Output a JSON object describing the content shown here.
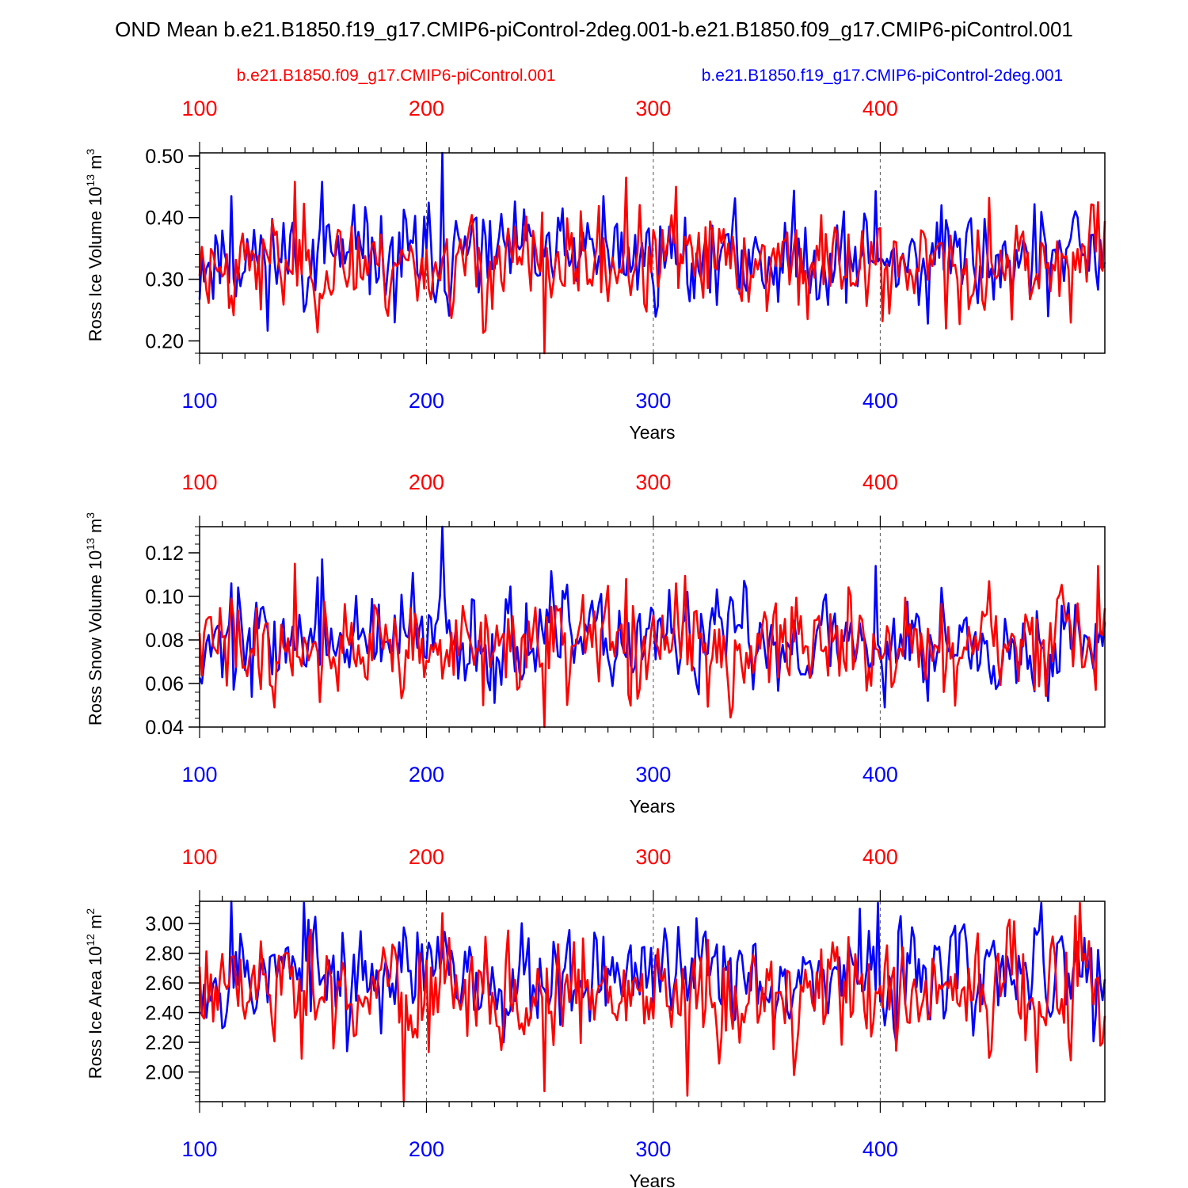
{
  "title": "OND Mean b.e21.B1850.f19_g17.CMIP6-piControl-2deg.001-b.e21.B1850.f09_g17.CMIP6-piControl.001",
  "colors": {
    "red": "#ff0000",
    "blue": "#0000ff",
    "text": "#000000",
    "grid": "#555555"
  },
  "legend": {
    "red_label": "b.e21.B1850.f09_g17.CMIP6-piControl.001",
    "blue_label": "b.e21.B1850.f19_g17.CMIP6-piControl-2deg.001"
  },
  "chart_data": [
    {
      "type": "line",
      "title": "",
      "ylabel_main": "Ross Ice Volume 10",
      "ylabel_exp1": "13",
      "ylabel_unit": " m",
      "ylabel_exp2": "3",
      "xlabel": "Years",
      "xlim": [
        100,
        499
      ],
      "ylim": [
        0.18,
        0.505
      ],
      "yticks": [
        0.2,
        0.3,
        0.4,
        0.5
      ],
      "yticklabels": [
        "0.20",
        "0.30",
        "0.40",
        "0.50"
      ],
      "xticks": [
        100,
        200,
        300,
        400
      ],
      "xticklabels": [
        "100",
        "200",
        "300",
        "400"
      ],
      "grid_x": [
        200,
        300,
        400
      ],
      "series": [
        {
          "name": "b.e21.B1850.f19_g17.CMIP6-piControl-2deg.001",
          "color": "blue",
          "mean": 0.335,
          "sd": 0.038,
          "seed": 11,
          "peaks": [
            [
              114,
              0.435
            ],
            [
              154,
              0.458
            ],
            [
              207,
              0.505
            ],
            [
              222,
              0.4
            ],
            [
              278,
              0.435
            ],
            [
              398,
              0.443
            ],
            [
              427,
              0.42
            ],
            [
              421,
              0.228
            ],
            [
              474,
              0.24
            ],
            [
              186,
              0.23
            ]
          ]
        },
        {
          "name": "b.e21.B1850.f09_g17.CMIP6-piControl.001",
          "color": "red",
          "mean": 0.325,
          "sd": 0.038,
          "seed": 23,
          "peaks": [
            [
              142,
              0.458
            ],
            [
              252,
              0.18
            ],
            [
              288,
              0.465
            ],
            [
              310,
              0.45
            ],
            [
              429,
              0.22
            ],
            [
              401,
              0.232
            ],
            [
              448,
              0.432
            ],
            [
              496,
              0.425
            ],
            [
              225,
              0.213
            ]
          ]
        }
      ]
    },
    {
      "type": "line",
      "title": "",
      "ylabel_main": "Ross Snow Volume 10",
      "ylabel_exp1": "13",
      "ylabel_unit": " m",
      "ylabel_exp2": "3",
      "xlabel": "Years",
      "xlim": [
        100,
        499
      ],
      "ylim": [
        0.04,
        0.132
      ],
      "yticks": [
        0.04,
        0.06,
        0.08,
        0.1,
        0.12
      ],
      "yticklabels": [
        "0.04",
        "0.06",
        "0.08",
        "0.10",
        "0.12"
      ],
      "xticks": [
        100,
        200,
        300,
        400
      ],
      "xticklabels": [
        "100",
        "200",
        "300",
        "400"
      ],
      "grid_x": [
        200,
        300,
        400
      ],
      "series": [
        {
          "name": "b.e21.B1850.f19_g17.CMIP6-piControl-2deg.001",
          "color": "blue",
          "mean": 0.08,
          "sd": 0.011,
          "seed": 37,
          "peaks": [
            [
              114,
              0.106
            ],
            [
              154,
              0.117
            ],
            [
              207,
              0.132
            ],
            [
              398,
              0.114
            ],
            [
              427,
              0.104
            ],
            [
              421,
              0.052
            ],
            [
              474,
              0.052
            ],
            [
              402,
              0.049
            ]
          ]
        },
        {
          "name": "b.e21.B1850.f09_g17.CMIP6-piControl.001",
          "color": "red",
          "mean": 0.077,
          "sd": 0.011,
          "seed": 41,
          "peaks": [
            [
              142,
              0.115
            ],
            [
              252,
              0.04
            ],
            [
              288,
              0.108
            ],
            [
              310,
              0.106
            ],
            [
              133,
              0.049
            ],
            [
              448,
              0.107
            ],
            [
              496,
              0.114
            ],
            [
              225,
              0.05
            ]
          ]
        }
      ]
    },
    {
      "type": "line",
      "title": "",
      "ylabel_main": "Ross Ice Area 10",
      "ylabel_exp1": "12",
      "ylabel_unit": " m",
      "ylabel_exp2": "2",
      "xlabel": "Years",
      "xlim": [
        100,
        499
      ],
      "ylim": [
        1.8,
        3.15
      ],
      "yticks": [
        2.0,
        2.2,
        2.4,
        2.6,
        2.8,
        3.0
      ],
      "yticklabels": [
        "2.00",
        "2.20",
        "2.40",
        "2.60",
        "2.80",
        "3.00"
      ],
      "xticks": [
        100,
        200,
        300,
        400
      ],
      "xticklabels": [
        "100",
        "200",
        "300",
        "400"
      ],
      "grid_x": [
        200,
        300,
        400
      ],
      "series": [
        {
          "name": "b.e21.B1850.f19_g17.CMIP6-piControl-2deg.001",
          "color": "blue",
          "mean": 2.66,
          "sd": 0.17,
          "seed": 53,
          "peaks": [
            [
              114,
              3.15
            ],
            [
              146,
              3.14
            ],
            [
              165,
              2.14
            ],
            [
              399,
              3.14
            ],
            [
              471,
              3.14
            ],
            [
              407,
              2.2
            ]
          ]
        },
        {
          "name": "b.e21.B1850.f09_g17.CMIP6-piControl.001",
          "color": "red",
          "mean": 2.52,
          "sd": 0.19,
          "seed": 61,
          "peaks": [
            [
              190,
              1.8
            ],
            [
              207,
              3.07
            ],
            [
              252,
              1.87
            ],
            [
              315,
              1.84
            ],
            [
              145,
              2.09
            ],
            [
              488,
              3.14
            ],
            [
              469,
              2.0
            ]
          ]
        }
      ]
    }
  ]
}
